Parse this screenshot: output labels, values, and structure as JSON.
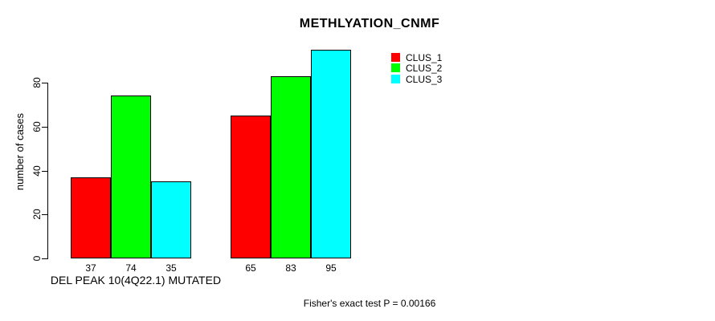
{
  "chart_data": {
    "type": "bar",
    "title": "METHLYATION_CNMF",
    "ylabel": "number of cases",
    "xlabel": "",
    "ylim": [
      0,
      95
    ],
    "yticks": [
      0,
      20,
      40,
      60,
      80
    ],
    "grid": false,
    "categories": [
      "DEL PEAK 10(4Q22.1) MUTATED",
      ""
    ],
    "series": [
      {
        "name": "CLUS_1",
        "color": "#ff0000",
        "values": [
          37,
          65
        ]
      },
      {
        "name": "CLUS_2",
        "color": "#00ff00",
        "values": [
          74,
          83
        ]
      },
      {
        "name": "CLUS_3",
        "color": "#00ffff",
        "values": [
          35,
          95
        ]
      }
    ],
    "bar_value_labels_shown": true,
    "bar_value_labels": [
      [
        37,
        74,
        35
      ],
      [
        65,
        83,
        95
      ]
    ],
    "legend_position": "inside-top-right",
    "legend_items": [
      "CLUS_1",
      "CLUS_2",
      "CLUS_3"
    ],
    "annotation": "Fisher's exact test P = 0.00166"
  }
}
